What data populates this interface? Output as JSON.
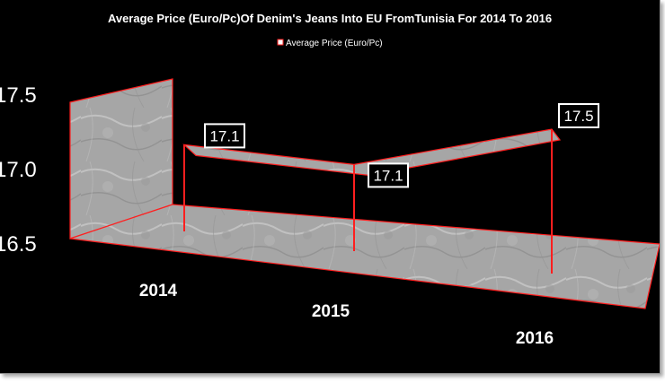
{
  "chart_data": {
    "type": "line",
    "title": "Average Price (Euro/Pc)Of Denim's Jeans Into EU FromTunisia For 2014 To 2016",
    "categories": [
      "2014",
      "2015",
      "2016"
    ],
    "series": [
      {
        "name": "Average Price (Euro/Pc)",
        "values": [
          17.1,
          17.1,
          17.5
        ],
        "labels": [
          "17.1",
          "17.1",
          "17.5"
        ]
      }
    ],
    "yticks": [
      "16.5",
      "17.0",
      "17.5"
    ],
    "ylim": [
      16.5,
      17.5
    ],
    "legend_position": "top",
    "grid": false,
    "three_d": true
  },
  "colors": {
    "background": "#000000",
    "line": "#ff1f1f",
    "marble": "#a9a9a9",
    "text": "#ffffff"
  }
}
